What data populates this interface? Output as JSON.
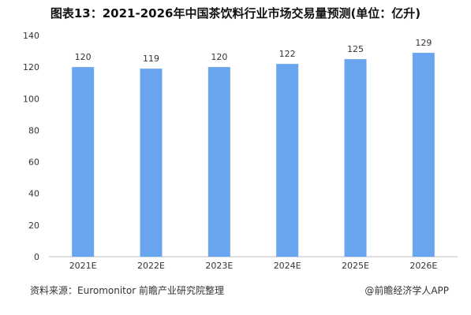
{
  "title": "图表13：2021-2026年中国茶饮料行业市场交易量预测(单位：亿升)",
  "footer": {
    "source": "资料来源：Euromonitor 前瞻产业研究院整理",
    "brand": "@前瞻经济学人APP"
  },
  "colors": {
    "bar": "#6AA6EF",
    "axis": "#bfbfbf"
  },
  "chart_data": {
    "type": "bar",
    "categories": [
      "2021E",
      "2022E",
      "2023E",
      "2024E",
      "2025E",
      "2026E"
    ],
    "values": [
      120,
      119,
      120,
      122,
      125,
      129
    ],
    "data_labels": [
      "120",
      "119",
      "120",
      "122",
      "125",
      "129"
    ],
    "yticks": [
      "0",
      "20",
      "40",
      "60",
      "80",
      "100",
      "120",
      "140"
    ],
    "ylim": [
      0,
      140
    ],
    "grid": false,
    "legend": "none"
  }
}
